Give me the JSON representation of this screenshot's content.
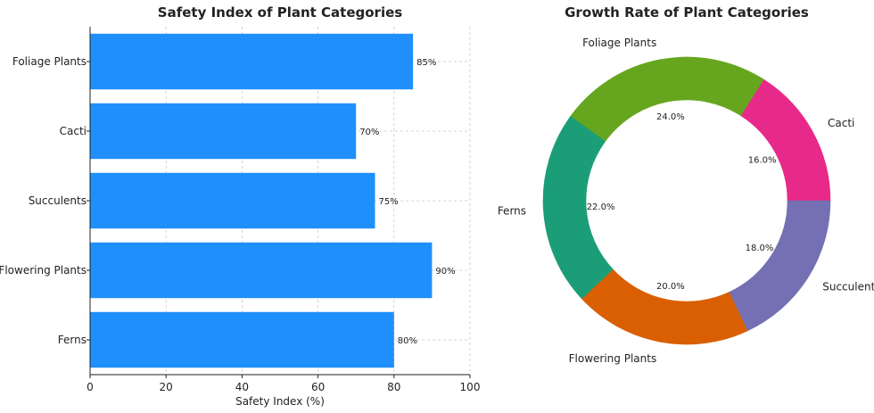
{
  "chart_data": [
    {
      "type": "bar",
      "orientation": "horizontal",
      "title": "Safety Index of Plant Categories",
      "xlabel": "Safety Index (%)",
      "ylabel": "",
      "xlim": [
        0,
        100
      ],
      "xticks": [
        0,
        20,
        40,
        60,
        80,
        100
      ],
      "grid": true,
      "categories": [
        "Ferns",
        "Flowering Plants",
        "Succulents",
        "Cacti",
        "Foliage Plants"
      ],
      "values": [
        80,
        90,
        75,
        70,
        85
      ],
      "data_labels": [
        "80%",
        "90%",
        "75%",
        "70%",
        "85%"
      ],
      "color": "#1f8ffc"
    },
    {
      "type": "pie",
      "style": "donut",
      "title": "Growth Rate of Plant Categories",
      "labels": [
        "Cacti",
        "Foliage Plants",
        "Ferns",
        "Flowering Plants",
        "Succulents"
      ],
      "values": [
        16,
        24,
        22,
        20,
        18
      ],
      "pct_labels": [
        "16.0%",
        "24.0%",
        "22.0%",
        "20.0%",
        "18.0%"
      ],
      "colors": [
        "#e7298a",
        "#66a61e",
        "#1b9e77",
        "#d95f02",
        "#7570b3"
      ]
    }
  ]
}
